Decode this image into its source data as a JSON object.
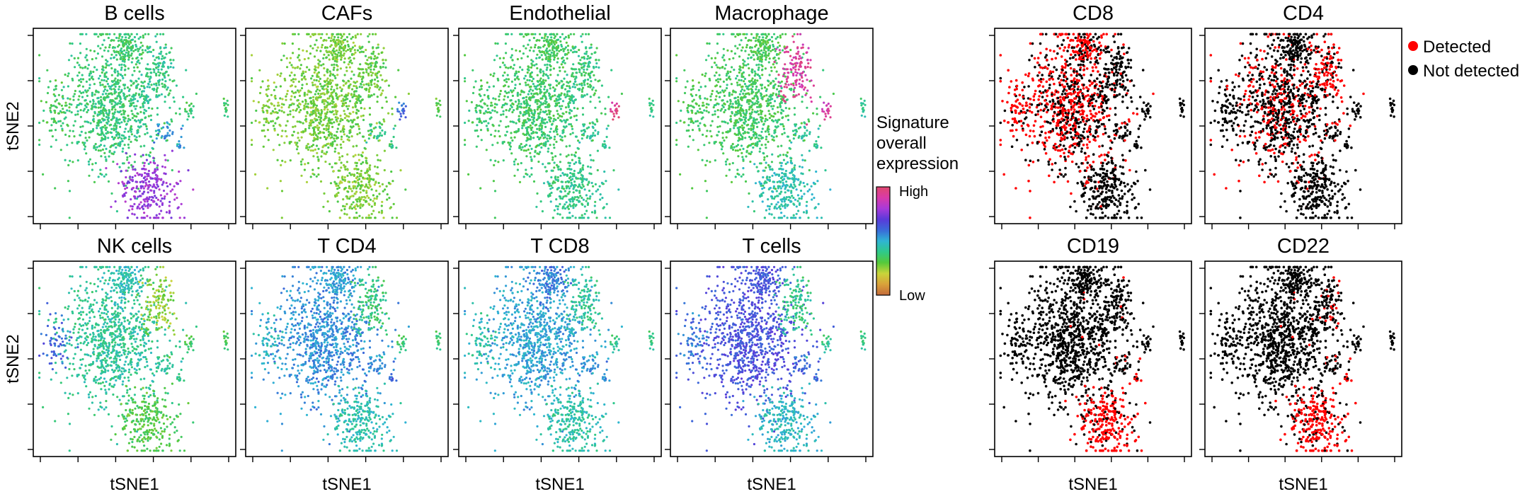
{
  "chart_data": {
    "type": "scatter",
    "x_axis_label": "tSNE1",
    "y_axis_label": "tSNE2",
    "signature_panels": [
      {
        "title": "B cells",
        "color_scale": "green-to-violet (B cell cluster highest)"
      },
      {
        "title": "CAFs",
        "color_scale": "mostly yellow-green"
      },
      {
        "title": "Endothelial",
        "color_scale": "mostly green"
      },
      {
        "title": "Macrophage",
        "color_scale": "magenta in upper-right cluster"
      },
      {
        "title": "NK cells",
        "color_scale": "green to cyan"
      },
      {
        "title": "T CD4",
        "color_scale": "cyan to blue"
      },
      {
        "title": "T CD8",
        "color_scale": "blue to green"
      },
      {
        "title": "T cells",
        "color_scale": "blue to violet"
      }
    ],
    "colorbar": {
      "title_lines": [
        "Signature",
        "overall",
        "expression"
      ],
      "high_label": "High",
      "low_label": "Low",
      "gradient_stops": [
        "#c46a3a",
        "#d9a13a",
        "#c9d43a",
        "#55c93a",
        "#2fc98a",
        "#2fb5d4",
        "#3a6ad9",
        "#5a3ad9",
        "#a83ad9",
        "#d93aa8",
        "#e0486e"
      ]
    },
    "marker_panels": [
      {
        "title": "CD8"
      },
      {
        "title": "CD4"
      },
      {
        "title": "CD19"
      },
      {
        "title": "CD22"
      }
    ],
    "legend": {
      "items": [
        {
          "label": "Detected",
          "color": "#ff0000"
        },
        {
          "label": "Not detected",
          "color": "#000000"
        }
      ]
    }
  }
}
